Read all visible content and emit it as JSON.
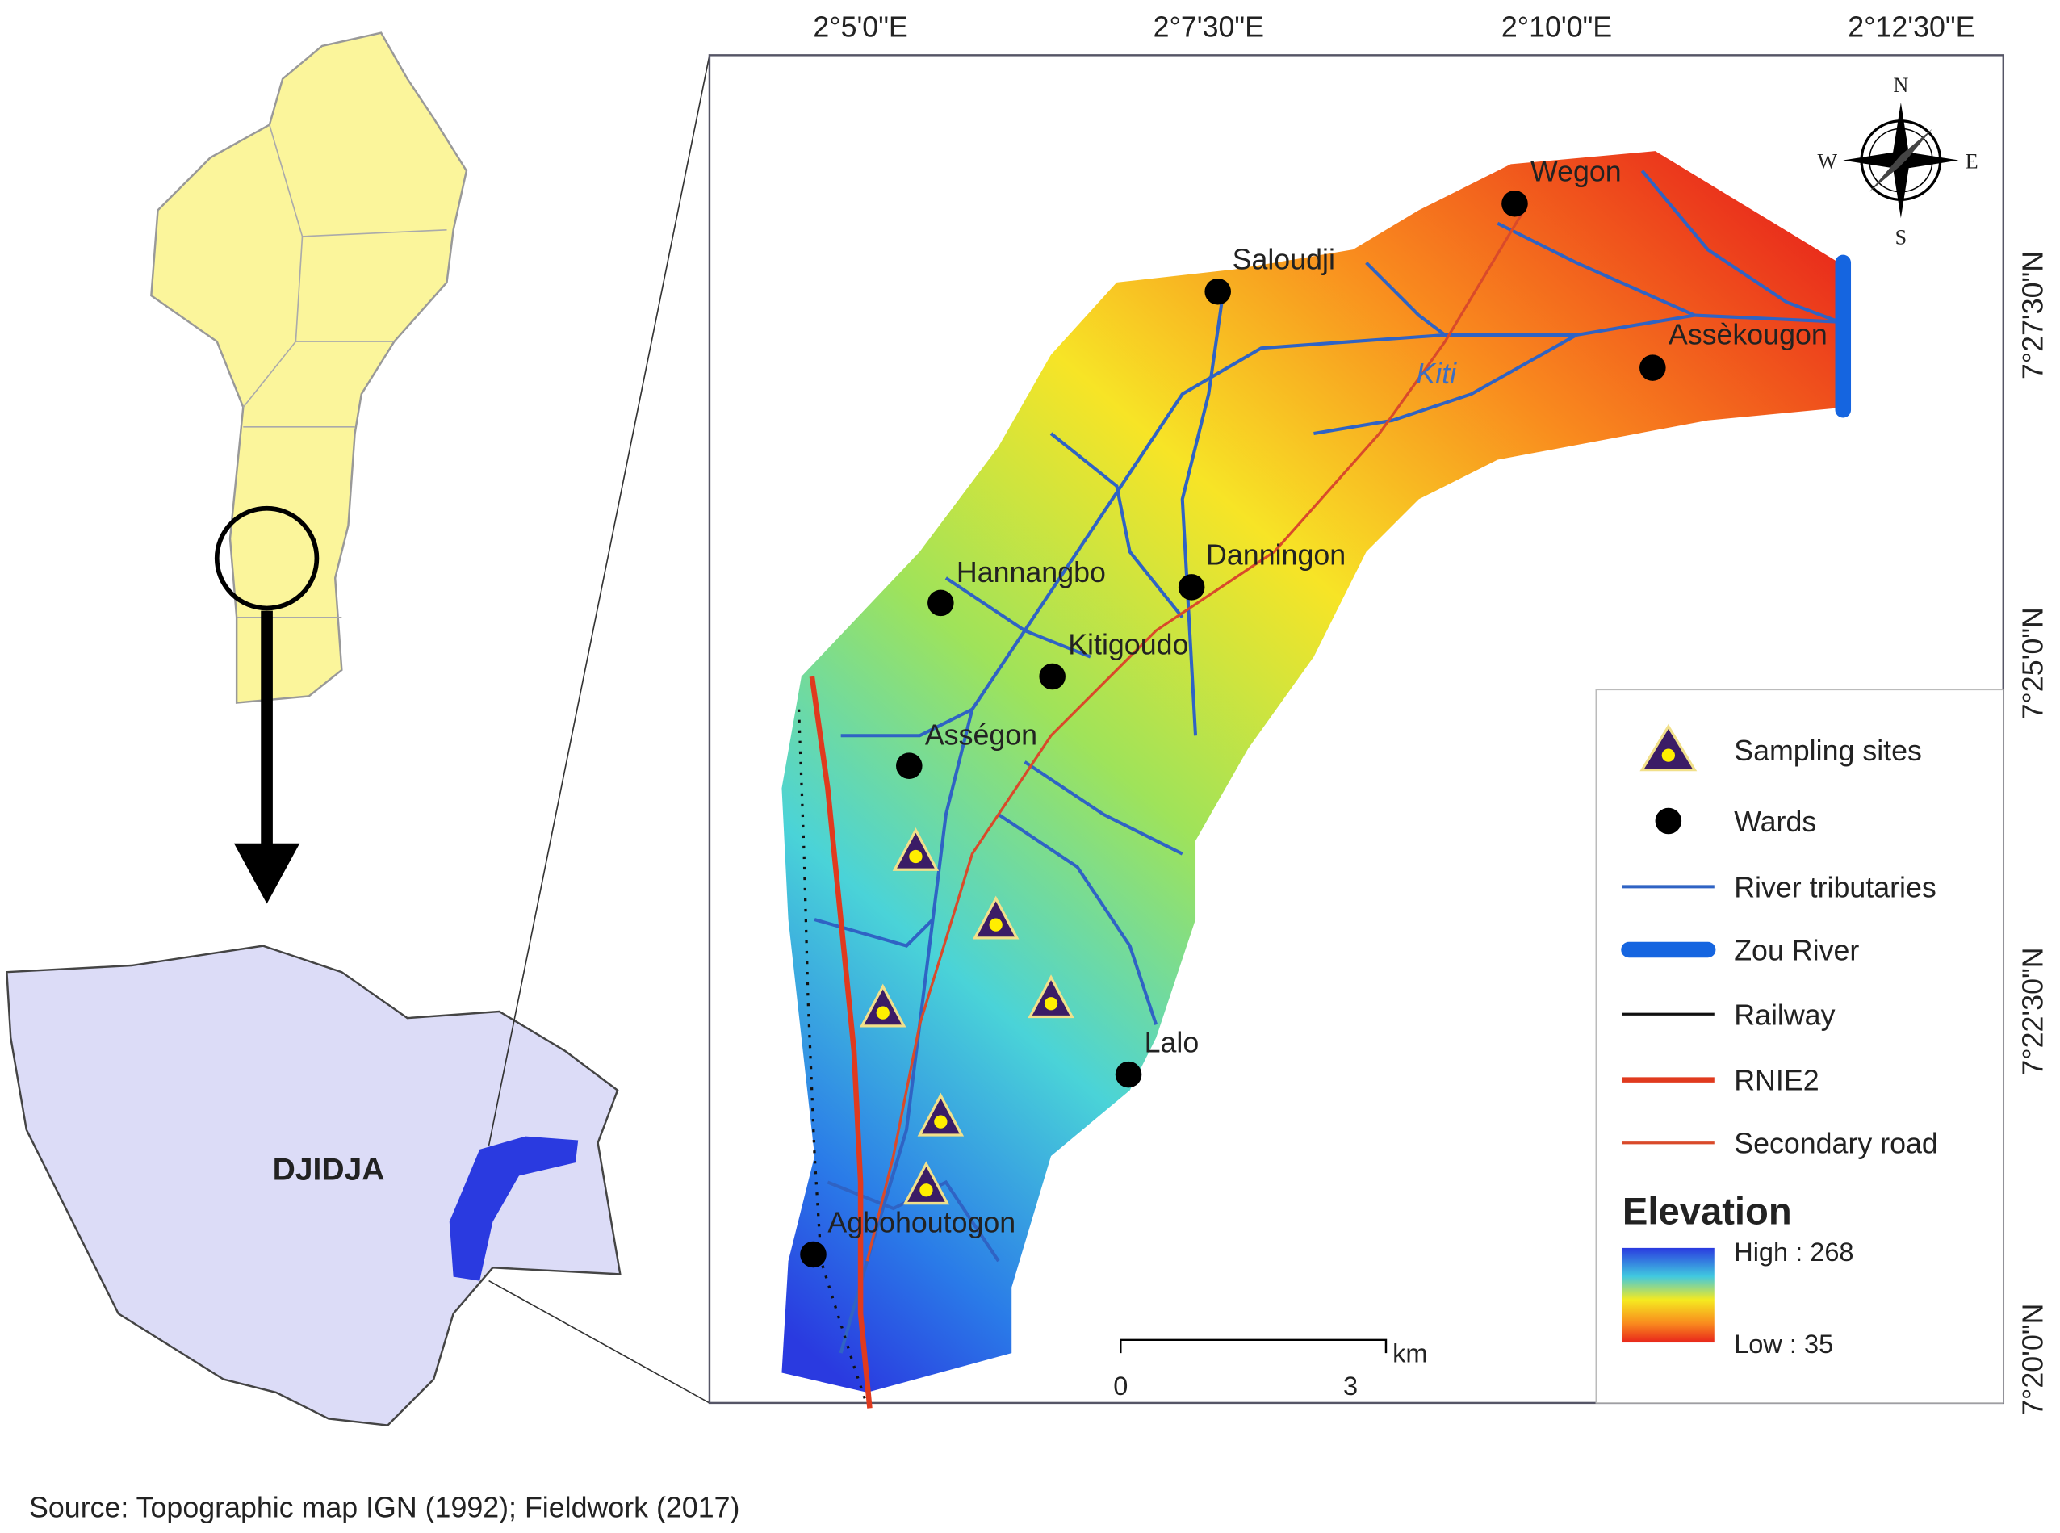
{
  "map": {
    "longitude_labels": [
      "2°5'0\"E",
      "2°7'30\"E",
      "2°10'0\"E",
      "2°12'30\"E"
    ],
    "latitude_labels": [
      "7°27'30\"N",
      "7°25'0\"N",
      "7°22'30\"N",
      "7°20'0\"N"
    ],
    "places": [
      "Wegon",
      "Saloudji",
      "Assèkougon",
      "Hannangbo",
      "Danningon",
      "Kitigoudo",
      "Asségon",
      "Lalo",
      "Agbohoutogon"
    ],
    "river_label": "Kiti",
    "inset_label": "DJIDJA",
    "compass": [
      "N",
      "E",
      "S",
      "W"
    ],
    "scale": {
      "start": "0",
      "end": "3",
      "unit": "km"
    }
  },
  "legend": {
    "items": [
      "Sampling sites",
      "Wards",
      "River tributaries",
      "Zou River",
      "Railway",
      "RNIE2",
      "Secondary road"
    ],
    "elevation_title": "Elevation",
    "high": "High : 268",
    "low": "Low : 35"
  },
  "source": "Source: Topographic map IGN (1992); Fieldwork (2017)"
}
